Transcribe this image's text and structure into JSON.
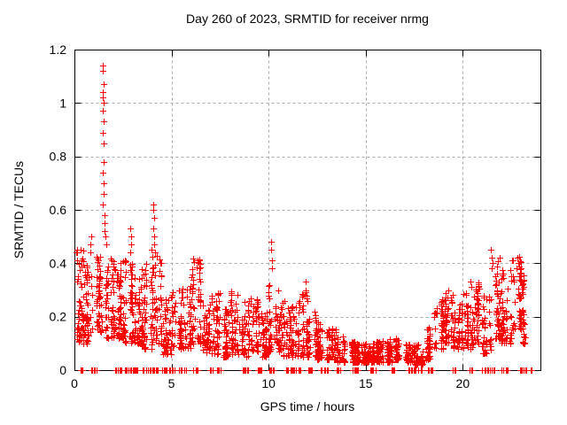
{
  "chart_data": {
    "type": "scatter",
    "title": "Day 260 of 2023, SRMTID for receiver nrmg",
    "xlabel": "GPS time / hours",
    "ylabel": "SRMTID / TECUs",
    "xlim": [
      0,
      24
    ],
    "ylim": [
      0,
      1.2
    ],
    "xticks": [
      0,
      5,
      10,
      15,
      20
    ],
    "xtick_labels": [
      "0",
      "5",
      "10",
      "15",
      "20"
    ],
    "yticks": [
      0,
      0.2,
      0.4,
      0.6,
      0.8,
      1,
      1.2
    ],
    "ytick_labels": [
      "0",
      "0.2",
      "0.4",
      "0.6",
      "0.8",
      "1",
      "1.2"
    ],
    "grid": true,
    "legend": "none",
    "marker": "plus",
    "marker_color": "#ff0000",
    "grid_color": "#a8a8a8",
    "axis_color": "#000000",
    "background": "#ffffff",
    "seed": 20230260,
    "max_value": 1.14,
    "max_value_hour": 1.47,
    "notable_points": [
      [
        0.1,
        0.44
      ],
      [
        0.15,
        0.41
      ],
      [
        0.8,
        0.47
      ],
      [
        0.82,
        0.44
      ],
      [
        0.85,
        0.5
      ],
      [
        1.47,
        1.14
      ],
      [
        1.48,
        1.12
      ],
      [
        1.49,
        1.07
      ],
      [
        1.48,
        1.04
      ],
      [
        1.47,
        1.02
      ],
      [
        1.49,
        1.0
      ],
      [
        1.48,
        0.97
      ],
      [
        1.5,
        0.93
      ],
      [
        1.46,
        0.89
      ],
      [
        1.51,
        0.85
      ],
      [
        1.49,
        0.78
      ],
      [
        1.47,
        0.74
      ],
      [
        1.5,
        0.7
      ],
      [
        1.52,
        0.66
      ],
      [
        1.48,
        0.62
      ],
      [
        1.53,
        0.58
      ],
      [
        1.55,
        0.55
      ],
      [
        1.57,
        0.52
      ],
      [
        1.6,
        0.5
      ],
      [
        1.62,
        0.47
      ],
      [
        2.88,
        0.53
      ],
      [
        2.9,
        0.5
      ],
      [
        2.92,
        0.47
      ],
      [
        2.89,
        0.44
      ],
      [
        3.95,
        0.45
      ],
      [
        4.05,
        0.62
      ],
      [
        4.08,
        0.6
      ],
      [
        4.1,
        0.57
      ],
      [
        4.07,
        0.53
      ],
      [
        4.12,
        0.5
      ],
      [
        4.09,
        0.47
      ],
      [
        4.13,
        0.44
      ],
      [
        6.35,
        0.41
      ],
      [
        6.38,
        0.4
      ],
      [
        6.42,
        0.38
      ],
      [
        10.13,
        0.48
      ],
      [
        10.15,
        0.45
      ],
      [
        10.17,
        0.41
      ],
      [
        10.18,
        0.38
      ],
      [
        11.9,
        0.33
      ],
      [
        11.92,
        0.3
      ],
      [
        20.4,
        0.33
      ],
      [
        20.43,
        0.31
      ],
      [
        21.45,
        0.45
      ],
      [
        21.5,
        0.42
      ],
      [
        21.55,
        0.4
      ],
      [
        21.48,
        0.38
      ],
      [
        22.8,
        0.42
      ],
      [
        22.85,
        0.4
      ],
      [
        22.75,
        0.38
      ]
    ],
    "density_bands_format": "x_start,x_end,y_min,y_max,count",
    "density_bands": [
      [
        0.0,
        0.5,
        0.1,
        0.46,
        60
      ],
      [
        0.5,
        1.0,
        0.1,
        0.4,
        45
      ],
      [
        1.0,
        1.5,
        0.14,
        0.46,
        55
      ],
      [
        1.5,
        2.0,
        0.12,
        0.42,
        55
      ],
      [
        2.0,
        2.5,
        0.12,
        0.4,
        60
      ],
      [
        2.5,
        3.0,
        0.1,
        0.42,
        60
      ],
      [
        3.0,
        3.5,
        0.1,
        0.38,
        55
      ],
      [
        3.5,
        4.0,
        0.08,
        0.42,
        50
      ],
      [
        4.0,
        4.5,
        0.1,
        0.44,
        55
      ],
      [
        4.5,
        5.0,
        0.06,
        0.28,
        50
      ],
      [
        5.0,
        5.5,
        0.08,
        0.3,
        48
      ],
      [
        5.5,
        6.0,
        0.08,
        0.32,
        45
      ],
      [
        6.0,
        6.5,
        0.1,
        0.42,
        55
      ],
      [
        6.5,
        7.0,
        0.06,
        0.3,
        45
      ],
      [
        7.0,
        7.5,
        0.06,
        0.3,
        48
      ],
      [
        7.5,
        8.0,
        0.05,
        0.25,
        45
      ],
      [
        8.0,
        8.5,
        0.06,
        0.3,
        48
      ],
      [
        8.5,
        9.0,
        0.05,
        0.26,
        45
      ],
      [
        9.0,
        9.5,
        0.07,
        0.27,
        48
      ],
      [
        9.5,
        10.0,
        0.05,
        0.22,
        45
      ],
      [
        10.0,
        10.5,
        0.07,
        0.38,
        50
      ],
      [
        10.5,
        11.0,
        0.05,
        0.28,
        48
      ],
      [
        11.0,
        11.5,
        0.05,
        0.24,
        48
      ],
      [
        11.5,
        12.0,
        0.05,
        0.3,
        52
      ],
      [
        12.0,
        12.5,
        0.05,
        0.22,
        45
      ],
      [
        12.5,
        13.0,
        0.04,
        0.18,
        45
      ],
      [
        13.0,
        13.5,
        0.04,
        0.16,
        45
      ],
      [
        13.5,
        14.0,
        0.03,
        0.13,
        45
      ],
      [
        14.0,
        14.5,
        0.03,
        0.11,
        48
      ],
      [
        14.5,
        15.0,
        0.03,
        0.1,
        48
      ],
      [
        15.0,
        15.5,
        0.03,
        0.1,
        48
      ],
      [
        15.5,
        16.0,
        0.03,
        0.11,
        48
      ],
      [
        16.0,
        16.5,
        0.03,
        0.12,
        48
      ],
      [
        16.5,
        17.0,
        0.04,
        0.12,
        45
      ],
      [
        17.0,
        17.5,
        0.03,
        0.1,
        45
      ],
      [
        17.5,
        18.0,
        0.02,
        0.1,
        42
      ],
      [
        18.0,
        18.5,
        0.04,
        0.16,
        45
      ],
      [
        18.5,
        19.0,
        0.08,
        0.27,
        48
      ],
      [
        19.0,
        19.5,
        0.1,
        0.3,
        48
      ],
      [
        19.5,
        20.0,
        0.08,
        0.25,
        48
      ],
      [
        20.0,
        20.5,
        0.08,
        0.3,
        48
      ],
      [
        20.5,
        21.0,
        0.1,
        0.33,
        48
      ],
      [
        21.0,
        21.5,
        0.06,
        0.28,
        45
      ],
      [
        21.5,
        22.0,
        0.12,
        0.42,
        52
      ],
      [
        22.0,
        22.5,
        0.1,
        0.38,
        48
      ],
      [
        22.5,
        23.0,
        0.15,
        0.43,
        52
      ],
      [
        23.0,
        23.4,
        0.1,
        0.36,
        32
      ]
    ],
    "zero_runs_format": "x_start,x_end,count (points plotted at y=0)",
    "zero_runs": [
      [
        0.3,
        0.45,
        5
      ],
      [
        0.85,
        1.15,
        9
      ],
      [
        2.05,
        2.5,
        12
      ],
      [
        2.55,
        3.35,
        22
      ],
      [
        3.5,
        4.35,
        20
      ],
      [
        4.5,
        5.15,
        14
      ],
      [
        5.4,
        5.75,
        8
      ],
      [
        6.1,
        6.35,
        6
      ],
      [
        6.9,
        7.15,
        6
      ],
      [
        7.3,
        7.55,
        6
      ],
      [
        8.55,
        8.95,
        9
      ],
      [
        9.4,
        9.65,
        6
      ],
      [
        10.0,
        10.25,
        6
      ],
      [
        10.9,
        11.65,
        16
      ],
      [
        12.0,
        12.25,
        6
      ],
      [
        12.6,
        13.15,
        10
      ],
      [
        13.5,
        13.75,
        6
      ],
      [
        14.3,
        14.65,
        9
      ],
      [
        15.2,
        15.55,
        7
      ],
      [
        16.3,
        16.55,
        6
      ],
      [
        17.15,
        17.95,
        16
      ],
      [
        18.2,
        18.45,
        6
      ],
      [
        19.4,
        19.65,
        6
      ],
      [
        20.3,
        20.5,
        5
      ],
      [
        20.9,
        21.65,
        12
      ],
      [
        21.9,
        22.3,
        8
      ],
      [
        22.9,
        23.3,
        8
      ],
      [
        23.45,
        23.6,
        3
      ]
    ]
  }
}
